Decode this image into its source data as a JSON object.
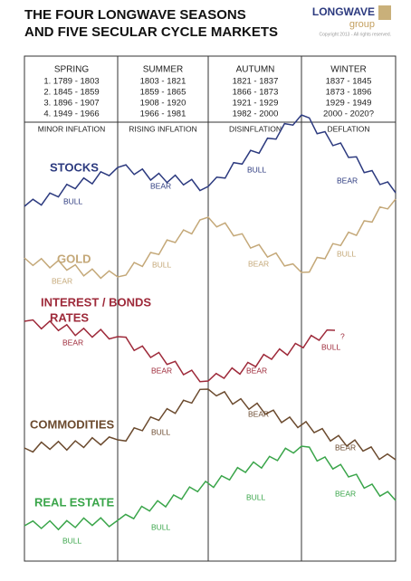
{
  "header": {
    "title": [
      "THE FOUR LONGWAVE SEASONS",
      "AND FIVE SECULAR CYCLE MARKETS"
    ],
    "logo": {
      "name": "LONGWAVE",
      "sub": "group",
      "copyright": "Copyright 2013 - All rights reserved."
    }
  },
  "seasons": [
    {
      "name": "SPRING",
      "periods": [
        "1. 1789 - 1803",
        "2. 1845 - 1859",
        "3. 1896 - 1907",
        "4. 1949 - 1966"
      ],
      "phase": "MINOR INFLATION"
    },
    {
      "name": "SUMMER",
      "periods": [
        "1803 - 1821",
        "1859 - 1865",
        "1908 - 1920",
        "1966 - 1981"
      ],
      "phase": "RISING INFLATION"
    },
    {
      "name": "AUTUMN",
      "periods": [
        "1821 - 1837",
        "1866 - 1873",
        "1921 - 1929",
        "1982 - 2000"
      ],
      "phase": "DISINFLATION"
    },
    {
      "name": "WINTER",
      "periods": [
        "1837 - 1845",
        "1873 - 1896",
        "1929 - 1949",
        "2000 - 2020?"
      ],
      "phase": "DEFLATION"
    }
  ],
  "markets": [
    {
      "name": [
        "STOCKS"
      ],
      "labels": [
        "BULL",
        "BEAR",
        "BULL",
        "BEAR"
      ]
    },
    {
      "name": [
        "GOLD"
      ],
      "labels": [
        "BEAR",
        "BULL",
        "BEAR",
        "BULL"
      ]
    },
    {
      "name": [
        "INTEREST / BONDS",
        "RATES"
      ],
      "labels": [
        "BEAR",
        "BEAR",
        "BEAR",
        "BULL",
        "?"
      ]
    },
    {
      "name": [
        "COMMODITIES"
      ],
      "labels": [
        "BULL",
        "BEAR",
        "BEAR"
      ]
    },
    {
      "name": [
        "REAL ESTATE"
      ],
      "labels": [
        "BULL",
        "BULL",
        "BULL",
        "BEAR"
      ]
    }
  ]
}
